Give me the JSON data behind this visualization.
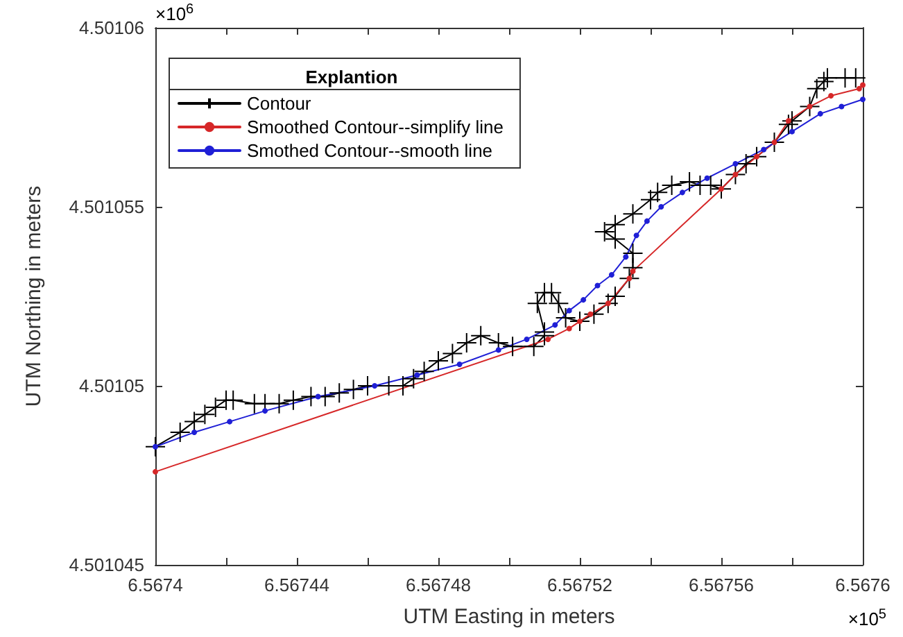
{
  "chart_data": {
    "type": "line",
    "xlabel": "UTM Easting in meters",
    "ylabel": "UTM Northing in meters",
    "legend_title": "Explantion",
    "legend": "top left",
    "grid": false,
    "annotations": [
      "×10$^{6}$",
      "×10$^{5}$"
    ],
    "xlim": [
      6.5674,
      6.5676
    ],
    "xticks": [
      6.5674,
      {
        "value": 6.56742,
        "label": null
      },
      6.56744,
      {
        "value": 6.56746,
        "label": null
      },
      6.56748,
      {
        "value": 6.5675,
        "label": null
      },
      6.56752,
      {
        "value": 6.56754,
        "label": null
      },
      6.56756,
      {
        "value": 6.56758,
        "label": null
      },
      6.5676
    ],
    "ylim": [
      4.501045,
      4.50106
    ],
    "yticks": [
      4.501045,
      4.50105,
      4.501055,
      4.50106
    ],
    "series": [
      {
        "name": "Contour",
        "color": "#000000",
        "marker": "cross",
        "x": [
          6.5674,
          6.567407,
          6.567411,
          6.567414,
          6.567417,
          6.56742,
          6.567422,
          6.567428,
          6.567431,
          6.567435,
          6.567439,
          6.567444,
          6.567448,
          6.567452,
          6.567456,
          6.56746,
          6.567466,
          6.56747,
          6.567473,
          6.567476,
          6.56748,
          6.567484,
          6.567488,
          6.567492,
          6.567497,
          6.567501,
          6.567507,
          6.56751,
          6.56751,
          6.567508,
          6.56751,
          6.567512,
          6.567514,
          6.567516,
          6.56752,
          6.567524,
          6.567528,
          6.56753,
          6.567534,
          6.567535,
          6.567535,
          6.56753,
          6.567527,
          6.56753,
          6.567535,
          6.56754,
          6.567542,
          6.567546,
          6.567551,
          6.567554,
          6.567557,
          6.56756,
          6.567564,
          6.567567,
          6.56757,
          6.567575,
          6.567579,
          6.56758,
          6.567585,
          6.567587,
          6.567589,
          6.56759,
          6.567595,
          6.567598
        ],
        "values": [
          4.5010483,
          4.5010487,
          4.501049,
          4.5010492,
          4.5010494,
          4.5010496,
          4.5010496,
          4.5010495,
          4.5010495,
          4.5010495,
          4.5010496,
          4.5010497,
          4.5010497,
          4.5010498,
          4.5010499,
          4.50105,
          4.50105,
          4.50105,
          4.5010502,
          4.5010504,
          4.5010507,
          4.5010509,
          4.5010512,
          4.5010514,
          4.5010512,
          4.5010511,
          4.5010511,
          4.5010514,
          4.5010515,
          4.5010523,
          4.5010526,
          4.5010526,
          4.5010523,
          4.5010519,
          4.5010518,
          4.501052,
          4.5010523,
          4.5010525,
          4.501053,
          4.5010533,
          4.5010537,
          4.5010541,
          4.5010543,
          4.5010545,
          4.5010548,
          4.5010552,
          4.5010554,
          4.5010556,
          4.5010557,
          4.5010556,
          4.5010556,
          4.5010555,
          4.5010559,
          4.5010562,
          4.5010564,
          4.5010568,
          4.5010573,
          4.5010574,
          4.5010578,
          4.5010583,
          4.5010585,
          4.5010586,
          4.5010586,
          4.5010586
        ]
      },
      {
        "name": "Smoothed Contour--simplify line",
        "color": "#d62728",
        "marker": "circle",
        "x": [
          6.5674,
          6.567511,
          6.567517,
          6.56752,
          6.567523,
          6.567528,
          6.567534,
          6.567535,
          6.56756,
          6.567564,
          6.56757,
          6.567575,
          6.567579,
          6.567585,
          6.567591,
          6.567599,
          6.5676
        ],
        "values": [
          4.5010476,
          4.5010513,
          4.5010516,
          4.5010518,
          4.501052,
          4.5010523,
          4.501053,
          4.5010532,
          4.5010555,
          4.5010559,
          4.5010564,
          4.5010568,
          4.5010574,
          4.5010578,
          4.5010581,
          4.5010583,
          4.5010584
        ]
      },
      {
        "name": "Smothed Contour--smooth line",
        "color": "#1f1fd6",
        "marker": "circle",
        "x": [
          6.5674,
          6.567411,
          6.567421,
          6.567431,
          6.567446,
          6.567462,
          6.567474,
          6.567486,
          6.567497,
          6.567505,
          6.567513,
          6.567517,
          6.567521,
          6.567525,
          6.567529,
          6.567533,
          6.567536,
          6.567539,
          6.567543,
          6.567549,
          6.567556,
          6.567564,
          6.567572,
          6.56758,
          6.567588,
          6.567594,
          6.5676
        ],
        "values": [
          4.5010483,
          4.5010487,
          4.501049,
          4.5010493,
          4.5010497,
          4.50105,
          4.5010503,
          4.5010506,
          4.501051,
          4.5010513,
          4.5010517,
          4.5010521,
          4.5010524,
          4.5010528,
          4.5010531,
          4.5010536,
          4.5010542,
          4.5010546,
          4.501055,
          4.5010554,
          4.5010558,
          4.5010562,
          4.5010566,
          4.5010571,
          4.5010576,
          4.5010578,
          4.501058
        ]
      }
    ]
  }
}
